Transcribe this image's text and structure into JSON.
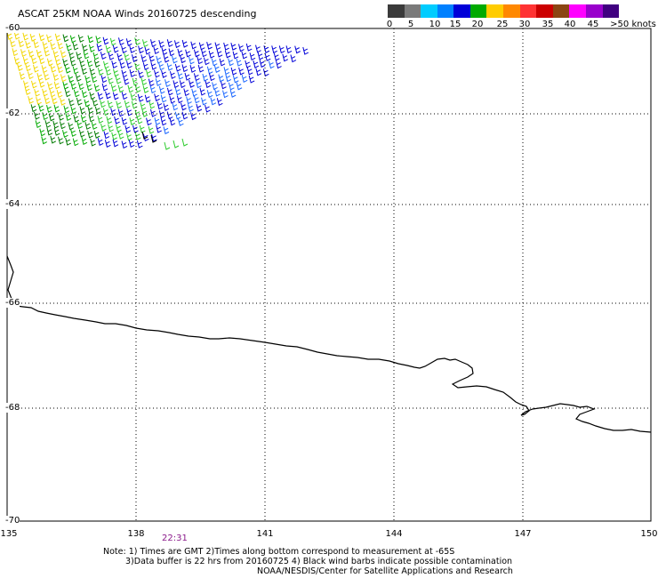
{
  "title": "ASCAT 25KM NOAA Winds 20160725 descending",
  "scale": {
    "colors": [
      "#3a3a3a",
      "#7a7a7a",
      "#00ccff",
      "#0080ff",
      "#0000d8",
      "#00aa00",
      "#ffcc00",
      "#ff8800",
      "#ff3333",
      "#cc0000",
      "#8b4513",
      "#ff00ff",
      "#9900cc",
      "#400080"
    ],
    "labels": [
      "0",
      "5",
      "10",
      "15",
      "20",
      "25",
      "30",
      "35",
      "40",
      "45",
      ">50 knots"
    ]
  },
  "map": {
    "lat_ticks": [
      "-60",
      "-62",
      "-64",
      "-66",
      "-68",
      "-70"
    ],
    "lon_ticks": [
      "135",
      "138",
      "141",
      "144",
      "147",
      "150"
    ],
    "time_label": "22:31"
  },
  "notes": {
    "line1": "Note: 1) Times are GMT 2)Times along bottom correspond to measurement at -65S",
    "line2": "3)Data buffer is 22 hrs from 20160725 4) Black wind barbs indicate possible contamination",
    "line3": "NOAA/NESDIS/Center for Satellite Applications and Research"
  }
}
